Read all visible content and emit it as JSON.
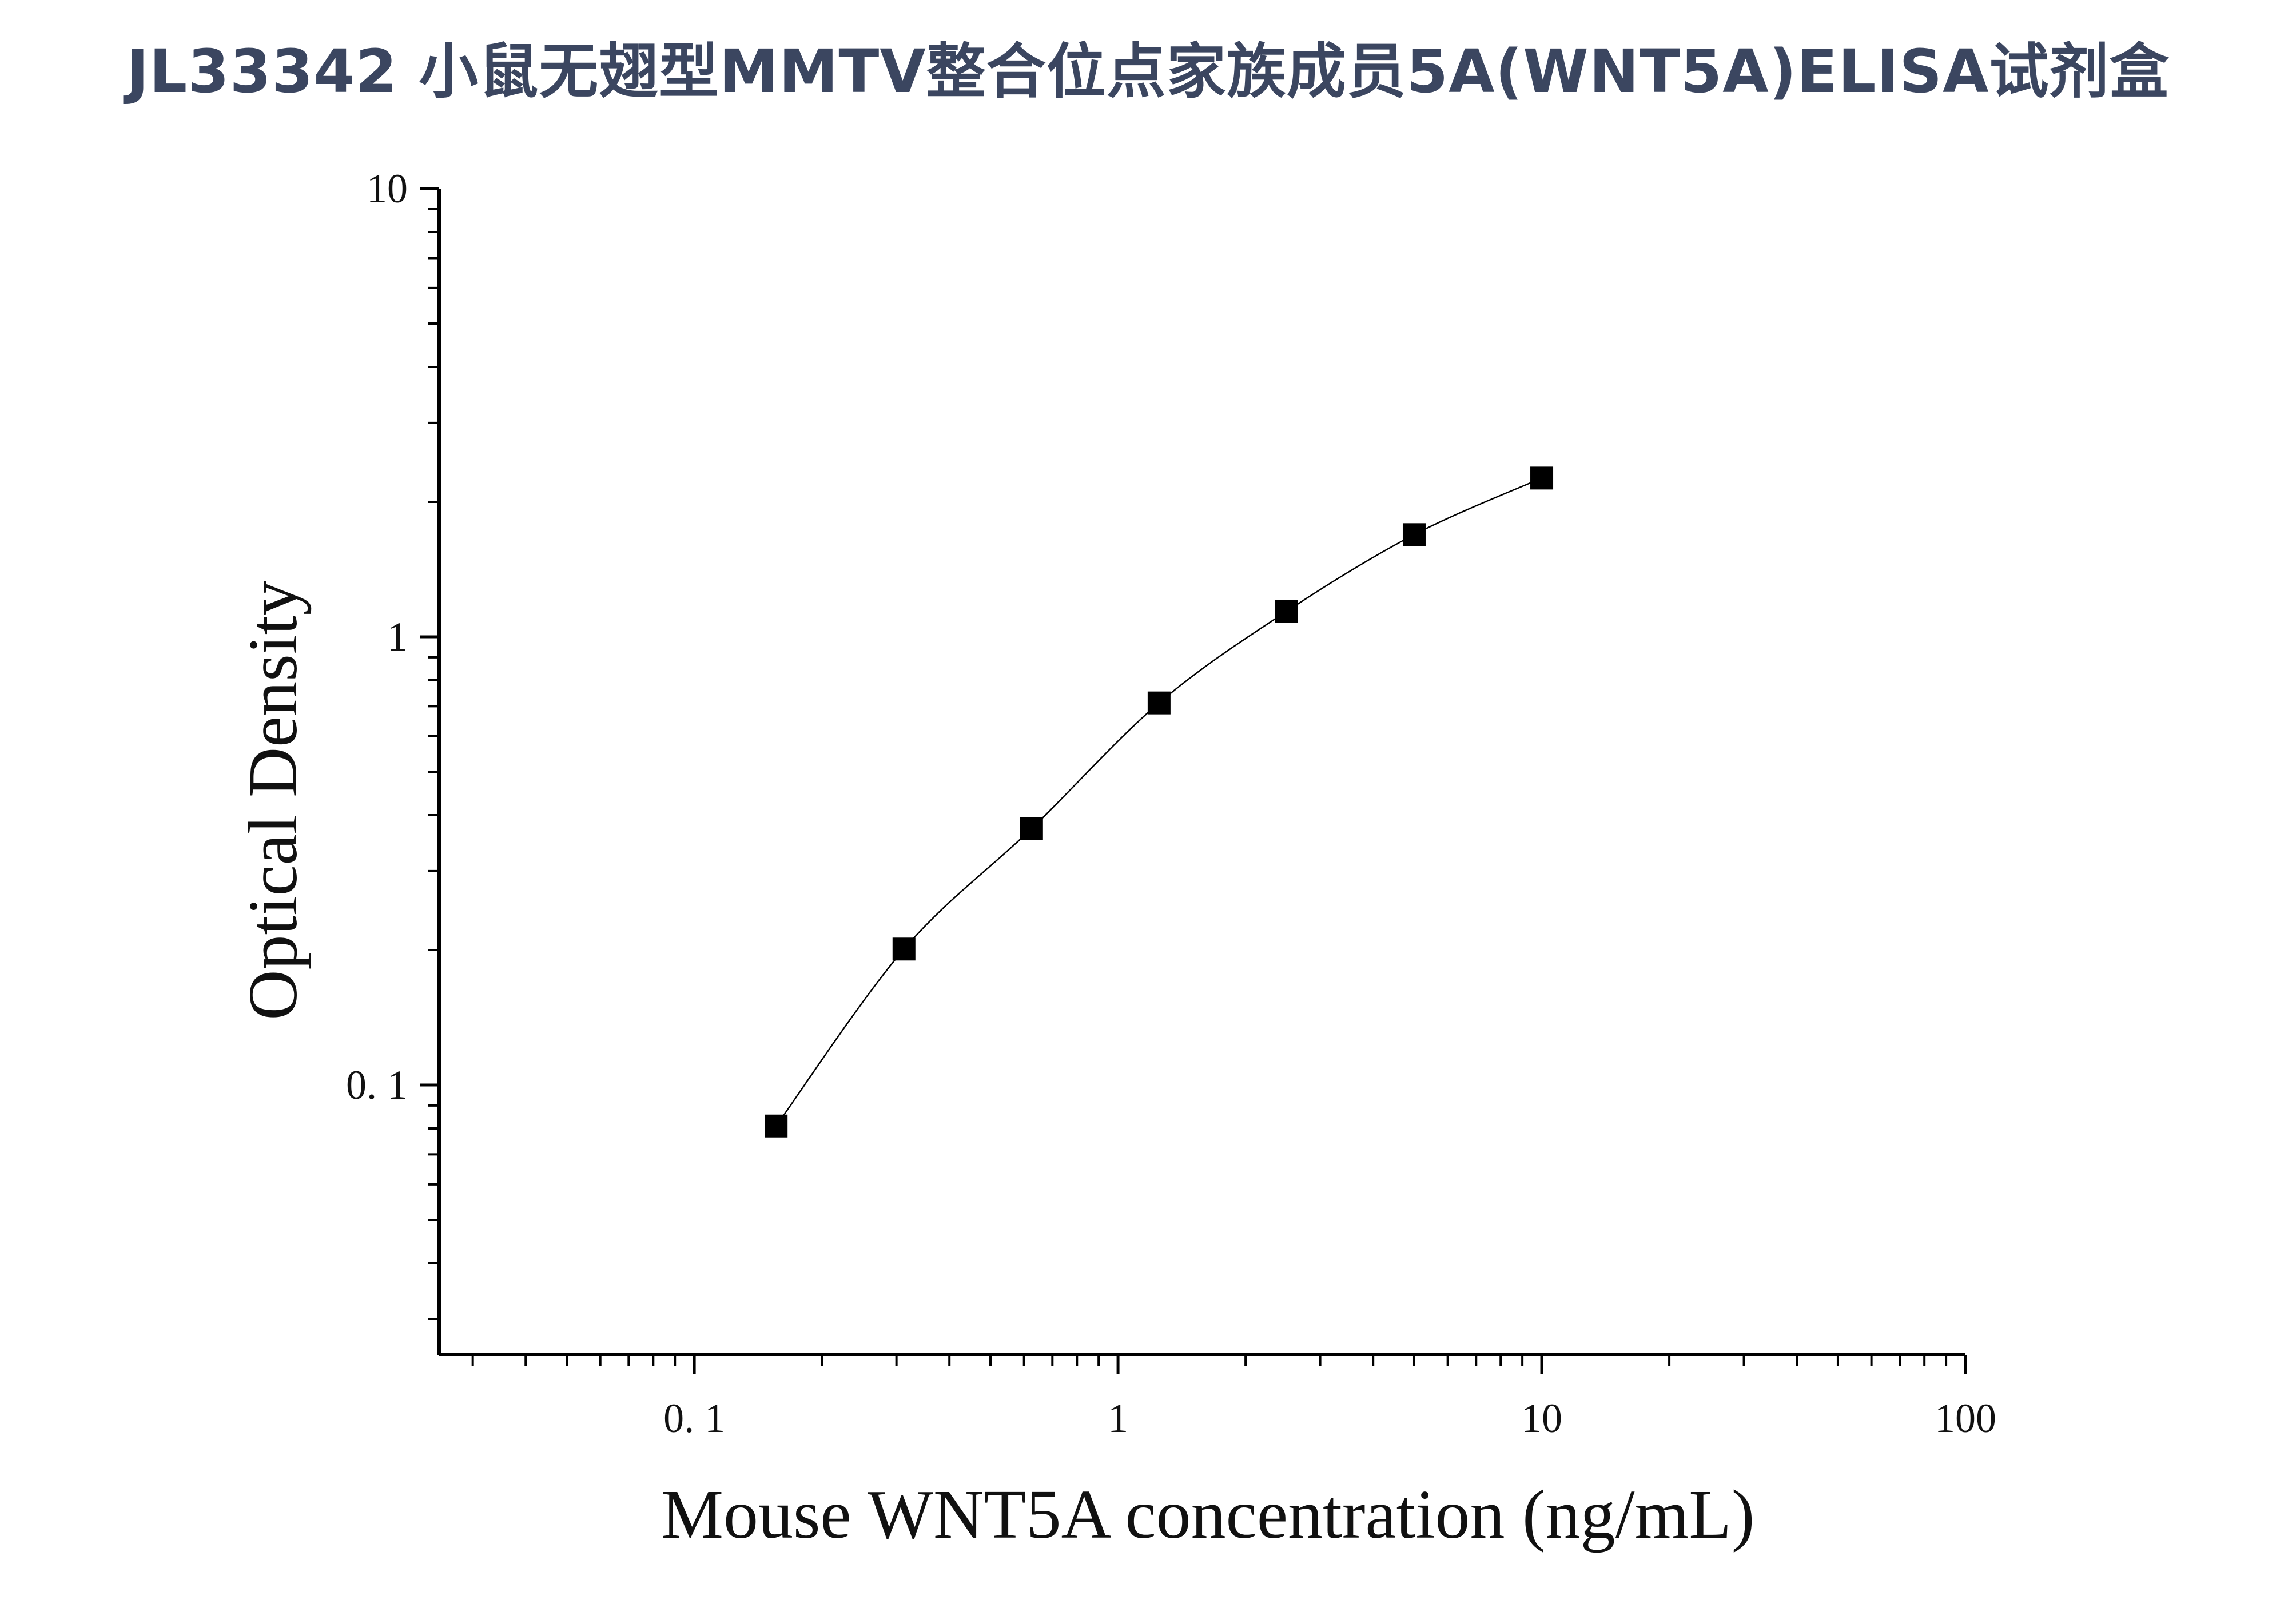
{
  "page": {
    "title": "JL33342 小鼠无翅型MMTV整合位点家族成员5A(WNT5A)ELISA试剂盒"
  },
  "chart_data": {
    "type": "scatter",
    "title": "",
    "xlabel": "Mouse WNT5A concentration (ng/mL)",
    "ylabel": "Optical Density",
    "x_scale": "log",
    "y_scale": "log",
    "xlim": [
      0.025,
      100
    ],
    "ylim": [
      0.025,
      10
    ],
    "x_ticks": [
      {
        "value": 0.1,
        "label": "0. 1"
      },
      {
        "value": 1,
        "label": "1"
      },
      {
        "value": 10,
        "label": "10"
      },
      {
        "value": 100,
        "label": "100"
      }
    ],
    "y_ticks": [
      {
        "value": 0.1,
        "label": "0. 1"
      },
      {
        "value": 1,
        "label": "1"
      },
      {
        "value": 10,
        "label": "10"
      }
    ],
    "grid": false,
    "legend": "none",
    "marker": "square",
    "fit_line": "smooth curve through points",
    "color": "#000000",
    "series": [
      {
        "x": [
          0.156,
          0.3125,
          0.625,
          1.25,
          2.5,
          5,
          10
        ],
        "y": [
          0.081,
          0.201,
          0.373,
          0.712,
          1.14,
          1.69,
          2.26
        ]
      }
    ]
  }
}
